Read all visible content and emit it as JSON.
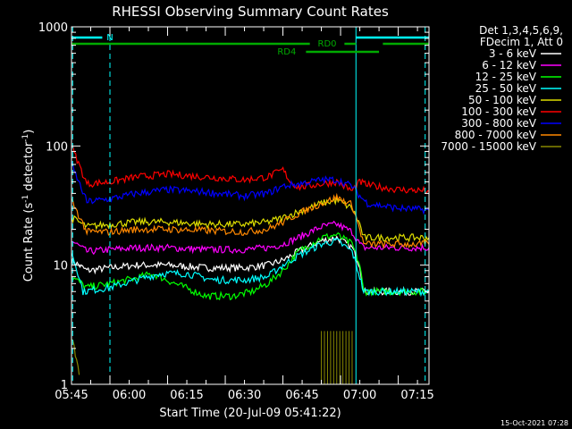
{
  "chart_data": {
    "type": "line",
    "title": "RHESSI Observing Summary Count Rates",
    "xlabel": "Start Time (20-Jul-09 05:41:22)",
    "ylabel_main": "Count Rate (s",
    "ylabel_sup1": "-1",
    "ylabel_mid": " detector",
    "ylabel_sup2": "-1",
    "ylabel_end": ")",
    "y_scale": "log",
    "ylim": [
      1,
      1000
    ],
    "xlim_minutes": [
      5.0,
      98.0
    ],
    "x_start_time": "05:40",
    "x_ticks": [
      {
        "minute": 0,
        "label": "05:45"
      },
      {
        "minute": 15,
        "label": "06:00"
      },
      {
        "minute": 30,
        "label": "06:15"
      },
      {
        "minute": 45,
        "label": "06:30"
      },
      {
        "minute": 60,
        "label": "06:45"
      },
      {
        "minute": 75,
        "label": "07:00"
      },
      {
        "minute": 90,
        "label": "07:15"
      }
    ],
    "y_ticks": [
      {
        "value": 1,
        "label": "1"
      },
      {
        "value": 10,
        "label": "10"
      },
      {
        "value": 100,
        "label": "100"
      },
      {
        "value": 1000,
        "label": "1000"
      }
    ],
    "legend_header": [
      "Det 1,3,4,5,6,9,",
      "FDecim 1, Att 0"
    ],
    "legend_position": "right",
    "series": [
      {
        "name": "3 - 6 keV",
        "color": "#ffffff",
        "points": [
          [
            5,
            11
          ],
          [
            9,
            9
          ],
          [
            15,
            9.5
          ],
          [
            22,
            10
          ],
          [
            30,
            10
          ],
          [
            40,
            9.5
          ],
          [
            50,
            9.5
          ],
          [
            56,
            10
          ],
          [
            60,
            11
          ],
          [
            64,
            13
          ],
          [
            70,
            16
          ],
          [
            74,
            17
          ],
          [
            78,
            14
          ],
          [
            80,
            10
          ],
          [
            81,
            6
          ],
          [
            98,
            6
          ]
        ]
      },
      {
        "name": "6 - 12 keV",
        "color": "#ff00ff",
        "points": [
          [
            5,
            16
          ],
          [
            9,
            13
          ],
          [
            15,
            13.5
          ],
          [
            22,
            14
          ],
          [
            30,
            14
          ],
          [
            40,
            13.5
          ],
          [
            50,
            13.5
          ],
          [
            56,
            14
          ],
          [
            60,
            15
          ],
          [
            64,
            17
          ],
          [
            70,
            21
          ],
          [
            74,
            22
          ],
          [
            78,
            19
          ],
          [
            80,
            15
          ],
          [
            81,
            14
          ],
          [
            98,
            14
          ]
        ]
      },
      {
        "name": "12 - 25 keV",
        "color": "#00ff00",
        "points": [
          [
            5,
            8
          ],
          [
            9,
            6.5
          ],
          [
            15,
            7
          ],
          [
            22,
            7.8
          ],
          [
            26,
            8.5
          ],
          [
            32,
            7
          ],
          [
            40,
            5.5
          ],
          [
            47,
            5.5
          ],
          [
            52,
            6
          ],
          [
            56,
            7
          ],
          [
            60,
            9
          ],
          [
            64,
            13
          ],
          [
            70,
            17
          ],
          [
            74,
            18
          ],
          [
            78,
            15
          ],
          [
            80,
            10
          ],
          [
            81,
            6
          ],
          [
            98,
            6
          ]
        ]
      },
      {
        "name": "25 - 50 keV",
        "color": "#00ffff",
        "points": [
          [
            5,
            13
          ],
          [
            7,
            8
          ],
          [
            8,
            6
          ],
          [
            15,
            6.5
          ],
          [
            22,
            7.5
          ],
          [
            28,
            8.5
          ],
          [
            35,
            8.5
          ],
          [
            42,
            7.5
          ],
          [
            50,
            7.5
          ],
          [
            56,
            8
          ],
          [
            60,
            10
          ],
          [
            64,
            12
          ],
          [
            70,
            15
          ],
          [
            74,
            16
          ],
          [
            78,
            13
          ],
          [
            80,
            8
          ],
          [
            81,
            6
          ],
          [
            98,
            6
          ]
        ]
      },
      {
        "name": "50 - 100 keV",
        "color": "#dddd00",
        "points": [
          [
            5,
            25
          ],
          [
            9,
            21
          ],
          [
            15,
            22
          ],
          [
            22,
            23
          ],
          [
            30,
            23
          ],
          [
            40,
            22
          ],
          [
            50,
            22
          ],
          [
            56,
            23
          ],
          [
            60,
            25
          ],
          [
            64,
            28
          ],
          [
            70,
            33
          ],
          [
            74,
            35
          ],
          [
            78,
            30
          ],
          [
            80,
            22
          ],
          [
            81,
            17
          ],
          [
            98,
            17
          ]
        ]
      },
      {
        "name": "100 - 300 keV",
        "color": "#ff0000",
        "points": [
          [
            5,
            100
          ],
          [
            9,
            48
          ],
          [
            15,
            50
          ],
          [
            22,
            55
          ],
          [
            30,
            58
          ],
          [
            40,
            55
          ],
          [
            50,
            52
          ],
          [
            56,
            55
          ],
          [
            60,
            63
          ],
          [
            62,
            50
          ],
          [
            64,
            45
          ],
          [
            70,
            48
          ],
          [
            74,
            50
          ],
          [
            78,
            42
          ],
          [
            80,
            50
          ],
          [
            82,
            47
          ],
          [
            90,
            43
          ],
          [
            98,
            42
          ]
        ]
      },
      {
        "name": "300 - 800 keV",
        "color": "#0000ff",
        "points": [
          [
            5,
            70
          ],
          [
            9,
            34
          ],
          [
            15,
            36
          ],
          [
            22,
            40
          ],
          [
            30,
            43
          ],
          [
            40,
            41
          ],
          [
            50,
            38
          ],
          [
            56,
            40
          ],
          [
            60,
            46
          ],
          [
            64,
            48
          ],
          [
            70,
            52
          ],
          [
            74,
            52
          ],
          [
            78,
            46
          ],
          [
            80,
            38
          ],
          [
            82,
            33
          ],
          [
            90,
            30
          ],
          [
            98,
            29
          ]
        ]
      },
      {
        "name": "800 - 7000 keV",
        "color": "#ff8800",
        "points": [
          [
            5,
            35
          ],
          [
            9,
            19
          ],
          [
            15,
            19
          ],
          [
            22,
            20
          ],
          [
            30,
            20
          ],
          [
            40,
            19.5
          ],
          [
            50,
            19
          ],
          [
            56,
            20
          ],
          [
            60,
            23
          ],
          [
            64,
            27
          ],
          [
            70,
            33
          ],
          [
            74,
            37
          ],
          [
            78,
            32
          ],
          [
            80,
            20
          ],
          [
            81,
            15
          ],
          [
            98,
            15
          ]
        ]
      },
      {
        "name": "7000 - 15000 keV",
        "color": "#888800",
        "points": [
          [
            5,
            2.5
          ],
          [
            6,
            1.8
          ],
          [
            7,
            1.2
          ]
        ]
      }
    ],
    "annotations": {
      "attenuator_label": "N",
      "attenuator_color": "#00ffff",
      "rd0_label": "RD0",
      "rd4_label": "RD4",
      "bar_color": "#00aa00",
      "dashed_line_minutes": [
        5.3,
        15,
        97
      ]
    },
    "footer_date": "15-Oct-2021 07:28"
  }
}
